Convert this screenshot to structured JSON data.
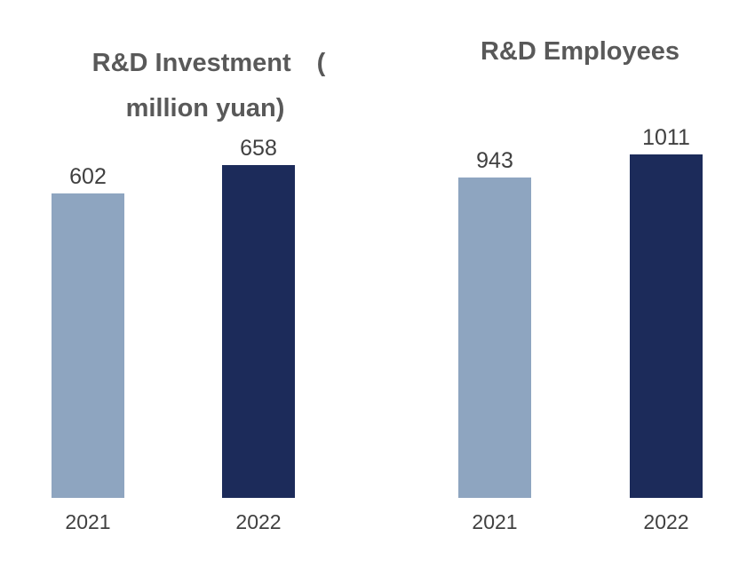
{
  "chart_data": [
    {
      "type": "bar",
      "title_lines": [
        "R&D Investment　(",
        "million yuan)"
      ],
      "categories": [
        "2021",
        "2022"
      ],
      "values": [
        602,
        658
      ],
      "value_labels": [
        "602",
        "658"
      ],
      "colors": [
        "#8ea5c0",
        "#1c2b5a"
      ],
      "grid": false,
      "legend": "none"
    },
    {
      "type": "bar",
      "title_lines": [
        "R&D Employees"
      ],
      "categories": [
        "2021",
        "2022"
      ],
      "values": [
        943,
        1011
      ],
      "value_labels": [
        "943",
        "1011"
      ],
      "colors": [
        "#8ea5c0",
        "#1c2b5a"
      ],
      "grid": false,
      "legend": "none"
    }
  ]
}
